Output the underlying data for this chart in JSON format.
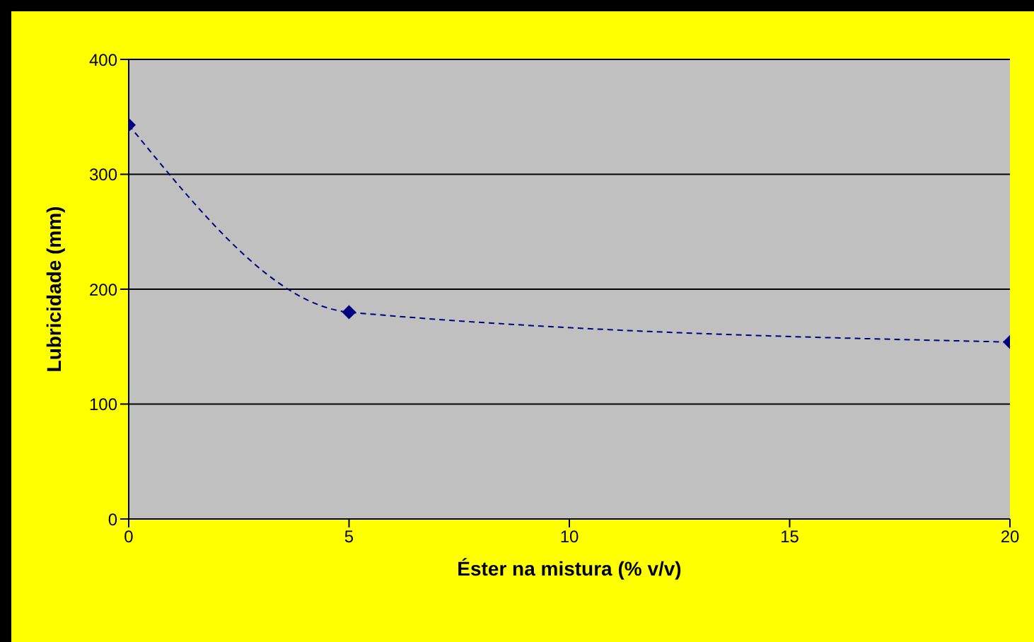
{
  "chart_data": {
    "type": "line",
    "xlabel": "Éster na mistura (% v/v)",
    "ylabel": "Lubricidade (mm)",
    "x": [
      0,
      5,
      20
    ],
    "series": [
      {
        "color": "#000080",
        "values": [
          343,
          180,
          154
        ]
      }
    ],
    "xlim": [
      0,
      20
    ],
    "xticks": [
      0,
      5,
      10,
      15,
      20
    ],
    "ylim": [
      0,
      400
    ],
    "yticks": [
      0,
      100,
      200,
      300,
      400
    ],
    "grid": "y",
    "marker": "diamond",
    "line_style": "dashed"
  }
}
